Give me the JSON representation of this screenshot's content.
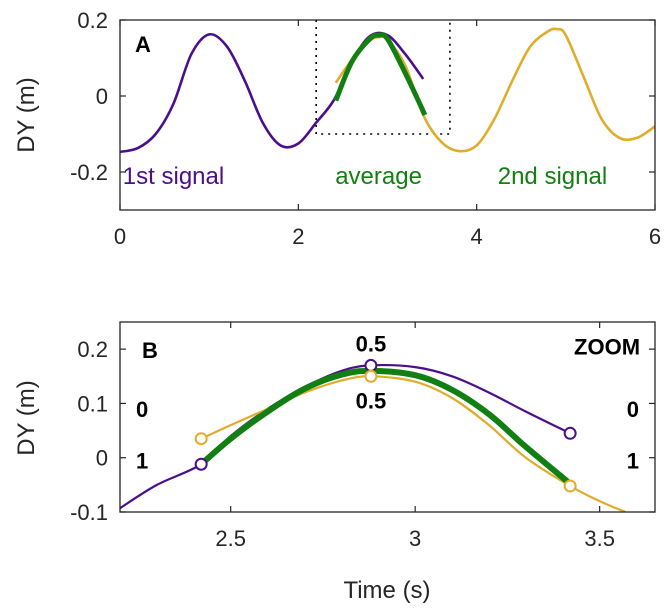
{
  "colors": {
    "first_signal": "#4b0f8c",
    "second_signal": "#e0ac2b",
    "average": "#127f12",
    "axis": "#262626"
  },
  "chart_data": [
    {
      "type": "line",
      "panel_label": "A",
      "ylabel": "DY (m)",
      "xlabel": "",
      "xlim": [
        0,
        6
      ],
      "ylim": [
        -0.3,
        0.2
      ],
      "xticks": [
        "0",
        "2",
        "4",
        "6"
      ],
      "yticks": [
        "-0.2",
        "0",
        "0.2"
      ],
      "grid": false,
      "legend": "none",
      "series": [
        {
          "name": "1st signal",
          "color_key": "first_signal",
          "x": [
            0.0,
            0.2,
            0.4,
            0.6,
            0.8,
            1.0,
            1.2,
            1.4,
            1.6,
            1.8,
            2.0,
            2.2,
            2.4,
            2.6,
            2.8,
            3.0,
            3.2,
            3.4
          ],
          "y": [
            -0.147,
            -0.137,
            -0.1,
            -0.02,
            0.11,
            0.162,
            0.13,
            0.04,
            -0.07,
            -0.13,
            -0.125,
            -0.07,
            -0.01,
            0.09,
            0.157,
            0.16,
            0.11,
            0.045
          ]
        },
        {
          "name": "2nd signal",
          "color_key": "second_signal",
          "x": [
            2.42,
            2.6,
            2.8,
            2.9,
            3.0,
            3.2,
            3.4,
            3.6,
            3.8,
            4.0,
            4.2,
            4.4,
            4.6,
            4.8,
            4.9,
            5.0,
            5.2,
            5.4,
            5.6,
            5.8,
            6.0
          ],
          "y": [
            0.035,
            0.095,
            0.145,
            0.155,
            0.148,
            0.08,
            -0.05,
            -0.12,
            -0.145,
            -0.13,
            -0.06,
            0.04,
            0.13,
            0.17,
            0.176,
            0.16,
            0.05,
            -0.06,
            -0.11,
            -0.11,
            -0.08
          ]
        },
        {
          "name": "average",
          "color_key": "average",
          "x": [
            2.42,
            2.6,
            2.8,
            2.9,
            3.0,
            3.2,
            3.42
          ],
          "y": [
            -0.012,
            0.09,
            0.15,
            0.16,
            0.15,
            0.06,
            -0.05
          ]
        }
      ],
      "region_labels": [
        {
          "text": "1st signal",
          "x": 0.6,
          "y": -0.21,
          "color_key": "first_signal"
        },
        {
          "text": "average",
          "x": 2.9,
          "y": -0.21,
          "color_key": "average"
        },
        {
          "text": "2nd signal",
          "x": 4.85,
          "y": -0.21,
          "color_key": "average"
        }
      ],
      "zoom_box": {
        "x": [
          2.2,
          3.7
        ],
        "y": [
          -0.1,
          0.2
        ]
      }
    },
    {
      "type": "line",
      "panel_label": "B",
      "xlabel": "Time (s)",
      "ylabel": "DY (m)",
      "xlim": [
        2.2,
        3.65
      ],
      "ylim": [
        -0.1,
        0.25
      ],
      "xticks": [
        "2.5",
        "3",
        "3.5"
      ],
      "yticks": [
        "-0.1",
        "0",
        "0.1",
        "0.2"
      ],
      "grid": false,
      "legend": "none",
      "series": [
        {
          "name": "1st signal",
          "color_key": "first_signal",
          "x": [
            2.2,
            2.3,
            2.42,
            2.5,
            2.6,
            2.7,
            2.8,
            2.88,
            3.0,
            3.1,
            3.2,
            3.3,
            3.42
          ],
          "y": [
            -0.093,
            -0.05,
            -0.012,
            0.04,
            0.09,
            0.13,
            0.16,
            0.17,
            0.167,
            0.15,
            0.12,
            0.085,
            0.045
          ]
        },
        {
          "name": "2nd signal",
          "color_key": "second_signal",
          "x": [
            2.42,
            2.5,
            2.6,
            2.7,
            2.8,
            2.88,
            3.0,
            3.1,
            3.2,
            3.3,
            3.42,
            3.5,
            3.57
          ],
          "y": [
            0.035,
            0.06,
            0.09,
            0.12,
            0.142,
            0.15,
            0.14,
            0.11,
            0.06,
            0.0,
            -0.052,
            -0.08,
            -0.1
          ]
        },
        {
          "name": "average",
          "color_key": "average",
          "x": [
            2.42,
            2.5,
            2.6,
            2.7,
            2.8,
            2.88,
            3.0,
            3.1,
            3.2,
            3.3,
            3.42
          ],
          "y": [
            -0.012,
            0.035,
            0.085,
            0.127,
            0.153,
            0.16,
            0.152,
            0.125,
            0.08,
            0.02,
            -0.048
          ]
        }
      ],
      "markers": [
        {
          "x": 2.42,
          "y": -0.012,
          "color_key": "first_signal"
        },
        {
          "x": 2.88,
          "y": 0.17,
          "color_key": "first_signal"
        },
        {
          "x": 3.42,
          "y": 0.045,
          "color_key": "first_signal"
        },
        {
          "x": 2.42,
          "y": 0.035,
          "color_key": "second_signal"
        },
        {
          "x": 2.88,
          "y": 0.15,
          "color_key": "second_signal"
        },
        {
          "x": 3.42,
          "y": -0.052,
          "color_key": "second_signal"
        }
      ],
      "annotations": [
        {
          "text": "0.5",
          "x": 2.88,
          "y": 0.21
        },
        {
          "text": "0.5",
          "x": 2.88,
          "y": 0.105
        },
        {
          "text": "0",
          "x": 2.26,
          "y": 0.09
        },
        {
          "text": "1",
          "x": 2.26,
          "y": -0.005
        },
        {
          "text": "0",
          "x": 3.59,
          "y": 0.09
        },
        {
          "text": "1",
          "x": 3.59,
          "y": -0.005
        },
        {
          "text": "ZOOM",
          "x": 3.52,
          "y": 0.205
        }
      ]
    }
  ]
}
